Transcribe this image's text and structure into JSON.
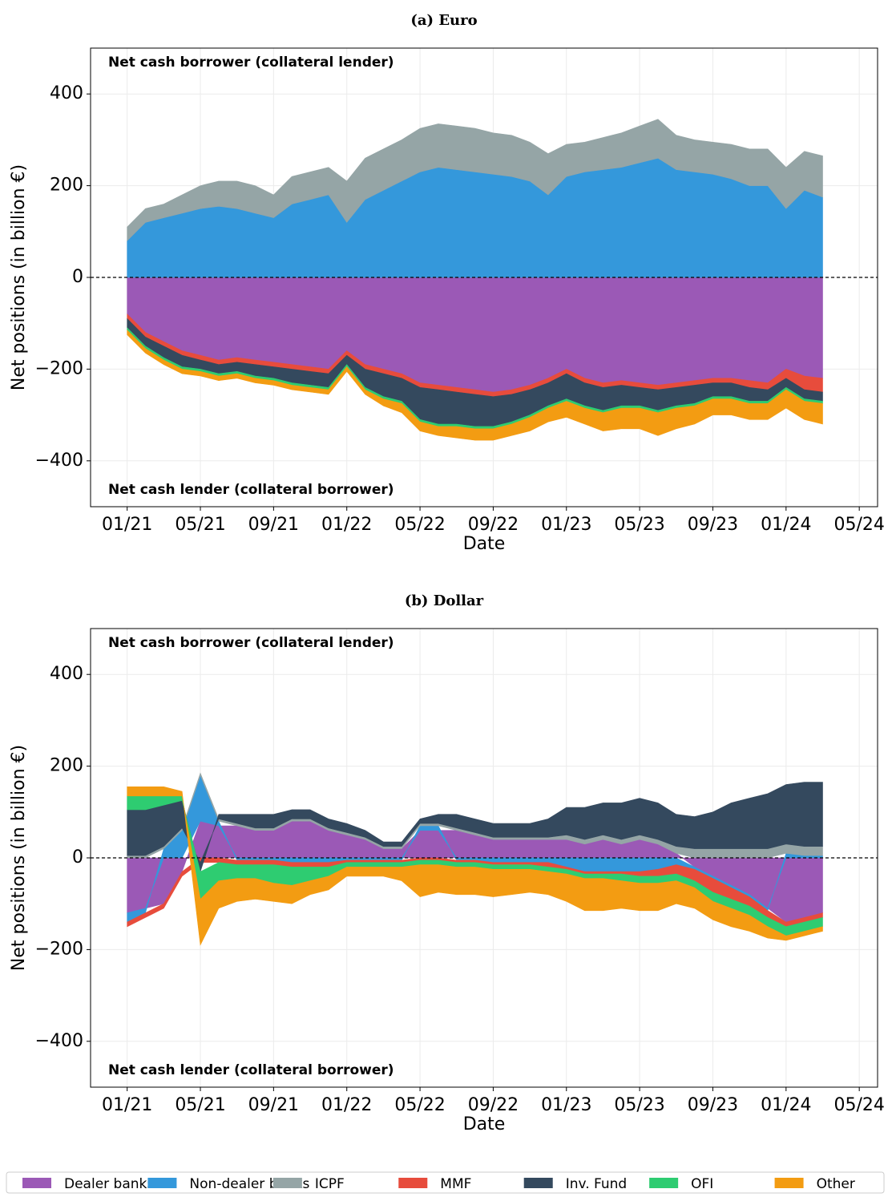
{
  "chart_data": [
    {
      "type": "area",
      "title": "(a) Euro",
      "y_label": "Net positions (in billion €)",
      "x_label": "Date",
      "annotations": [
        "Net cash borrower (collateral lender)",
        "Net cash lender (collateral borrower)"
      ],
      "x": [
        "2021-01",
        "2021-02",
        "2021-03",
        "2021-04",
        "2021-05",
        "2021-06",
        "2021-07",
        "2021-08",
        "2021-09",
        "2021-10",
        "2021-11",
        "2021-12",
        "2022-01",
        "2022-02",
        "2022-03",
        "2022-04",
        "2022-05",
        "2022-06",
        "2022-07",
        "2022-08",
        "2022-09",
        "2022-10",
        "2022-11",
        "2022-12",
        "2023-01",
        "2023-02",
        "2023-03",
        "2023-04",
        "2023-05",
        "2023-06",
        "2023-07",
        "2023-08",
        "2023-09",
        "2023-10",
        "2023-11",
        "2023-12",
        "2024-01",
        "2024-02",
        "2024-03"
      ],
      "xlim": [
        "2020-11",
        "2024-06"
      ],
      "xticks": [
        {
          "value": "2021-01",
          "label": "01/21"
        },
        {
          "value": "2021-05",
          "label": "05/21"
        },
        {
          "value": "2021-09",
          "label": "09/21"
        },
        {
          "value": "2022-01",
          "label": "01/22"
        },
        {
          "value": "2022-05",
          "label": "05/22"
        },
        {
          "value": "2022-09",
          "label": "09/22"
        },
        {
          "value": "2023-01",
          "label": "01/23"
        },
        {
          "value": "2023-05",
          "label": "05/23"
        },
        {
          "value": "2023-09",
          "label": "09/23"
        },
        {
          "value": "2024-01",
          "label": "01/24"
        },
        {
          "value": "2024-05",
          "label": "05/24"
        }
      ],
      "ylim": [
        -500,
        500
      ],
      "yticks": [
        {
          "value": -400,
          "label": "−400"
        },
        {
          "value": -200,
          "label": "−200"
        },
        0,
        200,
        400
      ],
      "grid": true,
      "legend": "bottom",
      "series": [
        {
          "name": "Dealer banks",
          "color": "#9b59b6",
          "values": [
            -80,
            -120,
            -140,
            -160,
            -170,
            -180,
            -175,
            -180,
            -185,
            -190,
            -195,
            -200,
            -160,
            -190,
            -200,
            -210,
            -230,
            -235,
            -240,
            -245,
            -250,
            -245,
            -235,
            -220,
            -200,
            -220,
            -230,
            -225,
            -230,
            -235,
            -230,
            -225,
            -220,
            -220,
            -225,
            -230,
            -200,
            -215,
            -220
          ]
        },
        {
          "name": "Non-dealer banks",
          "color": "#3498db",
          "values": [
            80,
            120,
            130,
            140,
            150,
            155,
            150,
            140,
            130,
            160,
            170,
            180,
            120,
            170,
            190,
            210,
            230,
            240,
            235,
            230,
            225,
            220,
            210,
            180,
            220,
            230,
            235,
            240,
            250,
            260,
            235,
            230,
            225,
            215,
            200,
            200,
            150,
            190,
            175
          ]
        },
        {
          "name": "ICPF",
          "color": "#95a5a6",
          "values": [
            30,
            30,
            30,
            40,
            50,
            55,
            60,
            60,
            50,
            60,
            60,
            60,
            90,
            90,
            90,
            90,
            95,
            95,
            95,
            95,
            90,
            90,
            85,
            90,
            70,
            65,
            70,
            75,
            80,
            85,
            75,
            70,
            70,
            75,
            80,
            80,
            90,
            85,
            90
          ]
        },
        {
          "name": "MMF",
          "color": "#e74c3c",
          "values": [
            -10,
            -10,
            -10,
            -10,
            -10,
            -10,
            -10,
            -10,
            -10,
            -10,
            -10,
            -10,
            -10,
            -10,
            -10,
            -10,
            -10,
            -10,
            -10,
            -10,
            -10,
            -10,
            -10,
            -10,
            -10,
            -10,
            -10,
            -10,
            -10,
            -10,
            -10,
            -10,
            -10,
            -10,
            -15,
            -15,
            -20,
            -30,
            -30
          ]
        },
        {
          "name": "Inv. Fund",
          "color": "#34495e",
          "values": [
            -20,
            -20,
            -25,
            -25,
            -20,
            -20,
            -20,
            -25,
            -25,
            -30,
            -30,
            -30,
            -20,
            -40,
            -50,
            -50,
            -70,
            -75,
            -70,
            -70,
            -65,
            -60,
            -55,
            -50,
            -55,
            -50,
            -50,
            -45,
            -40,
            -45,
            -40,
            -40,
            -30,
            -30,
            -30,
            -25,
            -20,
            -20,
            -20
          ]
        },
        {
          "name": "OFI",
          "color": "#2ecc71",
          "values": [
            -5,
            -5,
            -5,
            -5,
            -5,
            -5,
            -5,
            -5,
            -5,
            -5,
            -5,
            -5,
            -5,
            -5,
            -5,
            -5,
            -5,
            -5,
            -5,
            -5,
            -5,
            -5,
            -5,
            -5,
            -5,
            -5,
            -5,
            -5,
            -5,
            -5,
            -5,
            -5,
            -5,
            -5,
            -5,
            -5,
            -5,
            -5,
            -5
          ]
        },
        {
          "name": "Other",
          "color": "#f39c12",
          "values": [
            -10,
            -10,
            -10,
            -10,
            -10,
            -10,
            -10,
            -10,
            -10,
            -10,
            -10,
            -10,
            -10,
            -10,
            -15,
            -20,
            -20,
            -20,
            -25,
            -25,
            -25,
            -25,
            -30,
            -30,
            -35,
            -35,
            -40,
            -45,
            -45,
            -50,
            -45,
            -40,
            -35,
            -35,
            -35,
            -35,
            -40,
            -40,
            -45
          ]
        }
      ]
    },
    {
      "type": "area",
      "title": "(b) Dollar",
      "y_label": "Net positions (in billion €)",
      "x_label": "Date",
      "annotations": [
        "Net cash borrower (collateral lender)",
        "Net cash lender (collateral borrower)"
      ],
      "x": [
        "2021-01",
        "2021-02",
        "2021-03",
        "2021-04",
        "2021-05",
        "2021-06",
        "2021-07",
        "2021-08",
        "2021-09",
        "2021-10",
        "2021-11",
        "2021-12",
        "2022-01",
        "2022-02",
        "2022-03",
        "2022-04",
        "2022-05",
        "2022-06",
        "2022-07",
        "2022-08",
        "2022-09",
        "2022-10",
        "2022-11",
        "2022-12",
        "2023-01",
        "2023-02",
        "2023-03",
        "2023-04",
        "2023-05",
        "2023-06",
        "2023-07",
        "2023-08",
        "2023-09",
        "2023-10",
        "2023-11",
        "2023-12",
        "2024-01",
        "2024-02",
        "2024-03"
      ],
      "xlim": [
        "2020-11",
        "2024-06"
      ],
      "xticks": [
        {
          "value": "2021-01",
          "label": "01/21"
        },
        {
          "value": "2021-05",
          "label": "05/21"
        },
        {
          "value": "2021-09",
          "label": "09/21"
        },
        {
          "value": "2022-01",
          "label": "01/22"
        },
        {
          "value": "2022-05",
          "label": "05/22"
        },
        {
          "value": "2022-09",
          "label": "09/22"
        },
        {
          "value": "2023-01",
          "label": "01/23"
        },
        {
          "value": "2023-05",
          "label": "05/23"
        },
        {
          "value": "2023-09",
          "label": "09/23"
        },
        {
          "value": "2024-01",
          "label": "01/24"
        },
        {
          "value": "2024-05",
          "label": "05/24"
        }
      ],
      "ylim": [
        -500,
        500
      ],
      "yticks": [
        {
          "value": -400,
          "label": "−400"
        },
        {
          "value": -200,
          "label": "−200"
        },
        0,
        200,
        400
      ],
      "grid": true,
      "series": [
        {
          "name": "Dealer banks",
          "color": "#9b59b6",
          "values": [
            -120,
            -110,
            -100,
            -30,
            80,
            70,
            70,
            60,
            60,
            80,
            80,
            60,
            50,
            40,
            20,
            20,
            60,
            60,
            60,
            50,
            40,
            40,
            40,
            40,
            40,
            30,
            40,
            30,
            40,
            30,
            10,
            -20,
            -40,
            -60,
            -80,
            -110,
            -140,
            -130,
            -120
          ]
        },
        {
          "name": "Non-dealer banks",
          "color": "#3498db",
          "values": [
            -20,
            -10,
            20,
            60,
            100,
            10,
            -5,
            -5,
            -5,
            -10,
            -10,
            -10,
            -5,
            -5,
            -5,
            -5,
            10,
            10,
            -5,
            -5,
            -10,
            -10,
            -10,
            -10,
            -20,
            -30,
            -30,
            -30,
            -30,
            -25,
            -15,
            -5,
            -5,
            -5,
            -5,
            -5,
            10,
            5,
            5
          ]
        },
        {
          "name": "ICPF",
          "color": "#95a5a6",
          "values": [
            5,
            5,
            5,
            5,
            5,
            5,
            5,
            5,
            5,
            5,
            5,
            5,
            5,
            5,
            5,
            5,
            5,
            5,
            5,
            5,
            5,
            5,
            5,
            5,
            10,
            10,
            10,
            10,
            10,
            10,
            15,
            20,
            20,
            20,
            20,
            20,
            20,
            20,
            20
          ]
        },
        {
          "name": "MMF",
          "color": "#e74c3c",
          "values": [
            -10,
            -10,
            -10,
            -10,
            -10,
            -10,
            -10,
            -10,
            -10,
            -10,
            -10,
            -10,
            -5,
            -5,
            -5,
            -5,
            -5,
            -5,
            -5,
            -5,
            -5,
            -5,
            -5,
            -10,
            -5,
            -5,
            -5,
            -5,
            -10,
            -15,
            -20,
            -25,
            -30,
            -25,
            -20,
            -15,
            -10,
            -10,
            -10
          ]
        },
        {
          "name": "Inv. Fund",
          "color": "#34495e",
          "values": [
            100,
            100,
            90,
            60,
            -20,
            10,
            20,
            30,
            30,
            20,
            20,
            20,
            20,
            15,
            10,
            10,
            10,
            20,
            30,
            30,
            30,
            30,
            30,
            40,
            60,
            70,
            70,
            80,
            80,
            80,
            70,
            70,
            80,
            100,
            110,
            120,
            130,
            140,
            140
          ]
        },
        {
          "name": "OFI",
          "color": "#2ecc71",
          "values": [
            30,
            30,
            20,
            10,
            -60,
            -40,
            -30,
            -30,
            -40,
            -40,
            -30,
            -20,
            -10,
            -10,
            -10,
            -10,
            -10,
            -10,
            -10,
            -10,
            -10,
            -10,
            -10,
            -10,
            -10,
            -10,
            -10,
            -15,
            -15,
            -15,
            -15,
            -15,
            -20,
            -20,
            -20,
            -20,
            -20,
            -20,
            -20
          ]
        },
        {
          "name": "Other",
          "color": "#f39c12",
          "values": [
            20,
            20,
            20,
            10,
            -100,
            -60,
            -50,
            -45,
            -40,
            -40,
            -30,
            -30,
            -20,
            -20,
            -20,
            -30,
            -70,
            -60,
            -60,
            -60,
            -60,
            -55,
            -50,
            -50,
            -60,
            -70,
            -70,
            -60,
            -60,
            -60,
            -50,
            -45,
            -40,
            -40,
            -35,
            -25,
            -10,
            -10,
            -10
          ]
        }
      ]
    }
  ]
}
